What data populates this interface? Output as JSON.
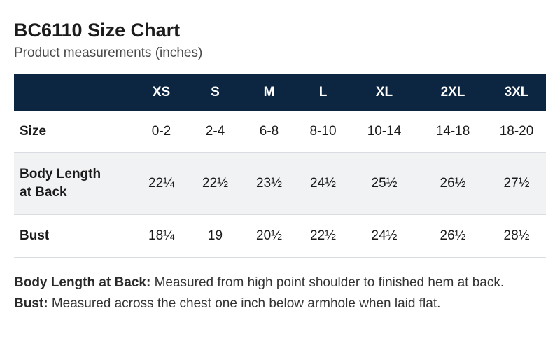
{
  "header": {
    "title": "BC6110 Size Chart",
    "subtitle": "Product measurements (inches)"
  },
  "table": {
    "columns": [
      "XS",
      "S",
      "M",
      "L",
      "XL",
      "2XL",
      "3XL"
    ],
    "rows": [
      {
        "label": "Size",
        "values": [
          "0-2",
          "2-4",
          "6-8",
          "8-10",
          "10-14",
          "14-18",
          "18-20"
        ]
      },
      {
        "label_line1": "Body Length",
        "label_line2": "at Back",
        "values": [
          "22¼",
          "22½",
          "23½",
          "24½",
          "25½",
          "26½",
          "27½"
        ]
      },
      {
        "label": "Bust",
        "values": [
          "18¼",
          "19",
          "20½",
          "22½",
          "24½",
          "26½",
          "28½"
        ]
      }
    ]
  },
  "notes": [
    {
      "label": "Body Length at Back:",
      "text": "Measured from high point shoulder to finished hem at back."
    },
    {
      "label": "Bust:",
      "text": "Measured across the chest one inch below armhole when laid flat."
    }
  ],
  "colors": {
    "header_bg": "#0c2540",
    "alt_row_bg": "#f1f2f4",
    "row_divider": "#d9dde2"
  }
}
